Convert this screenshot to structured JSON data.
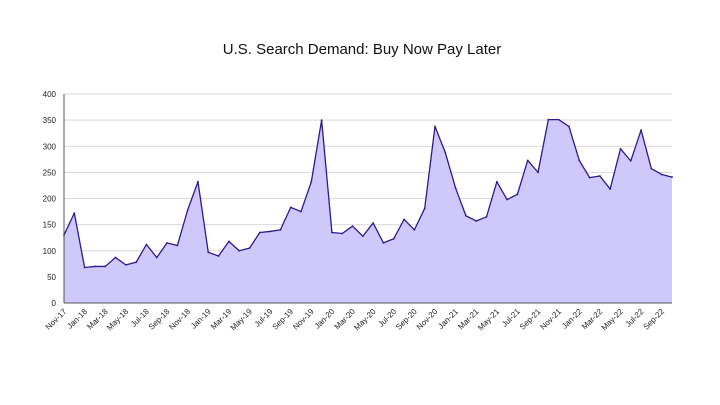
{
  "chart_data": {
    "type": "area",
    "title": "U.S. Search Demand: Buy Now Pay Later",
    "xlabel": "",
    "ylabel": "",
    "ylim": [
      0,
      400
    ],
    "yticks": [
      0,
      50,
      100,
      150,
      200,
      250,
      300,
      350,
      400
    ],
    "grid": true,
    "legend": "none",
    "colors": {
      "fill": "#cfc8fb",
      "line": "#2b1b8f",
      "grid": "#d9d9d9",
      "axis": "#555555"
    },
    "x_tick_labels": [
      "Nov-17",
      "Jan-18",
      "Mar-18",
      "May-18",
      "Jul-18",
      "Sep-18",
      "Nov-18",
      "Jan-19",
      "Mar-19",
      "May-19",
      "Jul-19",
      "Sep-19",
      "Nov-19",
      "Jan-20",
      "Mar-20",
      "May-20",
      "Jul-20",
      "Sep-20",
      "Nov-20",
      "Jan-21",
      "Mar-21",
      "May-21",
      "Jul-21",
      "Sep-21",
      "Nov-21",
      "Jan-22",
      "Mar-22",
      "May-22",
      "Jul-22",
      "Sep-22"
    ],
    "x": [
      "Nov-17",
      "Dec-17",
      "Jan-18",
      "Feb-18",
      "Mar-18",
      "Apr-18",
      "May-18",
      "Jun-18",
      "Jul-18",
      "Aug-18",
      "Sep-18",
      "Oct-18",
      "Nov-18",
      "Dec-18",
      "Jan-19",
      "Feb-19",
      "Mar-19",
      "Apr-19",
      "May-19",
      "Jun-19",
      "Jul-19",
      "Aug-19",
      "Sep-19",
      "Oct-19",
      "Nov-19",
      "Dec-19",
      "Jan-20",
      "Feb-20",
      "Mar-20",
      "Apr-20",
      "May-20",
      "Jun-20",
      "Jul-20",
      "Aug-20",
      "Sep-20",
      "Oct-20",
      "Nov-20",
      "Dec-20",
      "Jan-21",
      "Feb-21",
      "Mar-21",
      "Apr-21",
      "May-21",
      "Jun-21",
      "Jul-21",
      "Aug-21",
      "Sep-21",
      "Oct-21",
      "Nov-21",
      "Dec-21",
      "Jan-22",
      "Feb-22",
      "Mar-22",
      "Apr-22",
      "May-22",
      "Jun-22",
      "Jul-22",
      "Aug-22",
      "Sep-22",
      "Oct-22"
    ],
    "series": [
      {
        "values": [
          130,
          172,
          68,
          70,
          70,
          87,
          73,
          78,
          112,
          87,
          115,
          110,
          178,
          232,
          97,
          90,
          118,
          100,
          105,
          135,
          137,
          140,
          183,
          175,
          232,
          350,
          135,
          133,
          147,
          128,
          153,
          115,
          123,
          160,
          140,
          181,
          338,
          288,
          220,
          167,
          157,
          165,
          232,
          198,
          208,
          273,
          250,
          351,
          351,
          338,
          273,
          240,
          243,
          218,
          295,
          272,
          331,
          257,
          246,
          241
        ]
      }
    ]
  }
}
